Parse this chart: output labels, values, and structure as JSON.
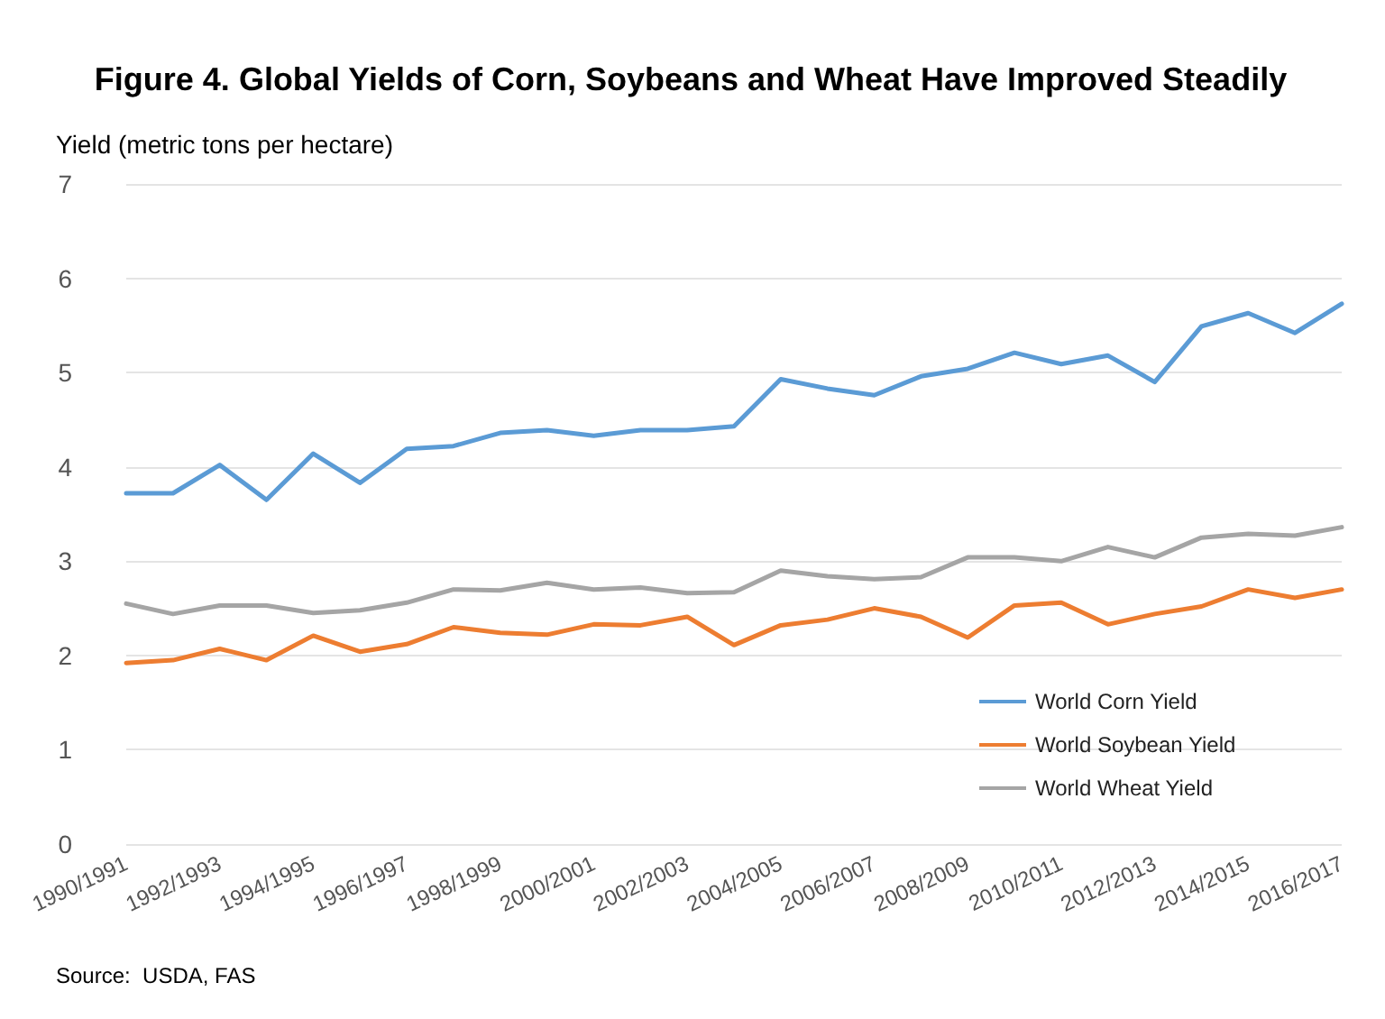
{
  "chart_data": {
    "type": "line",
    "title": "Figure 4. Global Yields of Corn, Soybeans and Wheat Have Improved Steadily",
    "ylabel": "Yield (metric tons per hectare)",
    "categories": [
      "1990/1991",
      null,
      "1992/1993",
      null,
      "1994/1995",
      null,
      "1996/1997",
      null,
      "1998/1999",
      null,
      "2000/2001",
      null,
      "2002/2003",
      null,
      "2004/2005",
      null,
      "2006/2007",
      null,
      "2008/2009",
      null,
      "2010/2011",
      null,
      "2012/2013",
      null,
      "2014/2015",
      null,
      "2016/2017"
    ],
    "series": [
      {
        "name": "World Corn Yield",
        "color": "#5b9bd5",
        "values": [
          3.72,
          3.72,
          4.02,
          3.65,
          4.14,
          3.83,
          4.19,
          4.22,
          4.36,
          4.39,
          4.33,
          4.39,
          4.39,
          4.43,
          4.93,
          4.83,
          4.76,
          4.96,
          5.04,
          5.21,
          5.09,
          5.18,
          4.9,
          5.49,
          5.63,
          5.42,
          5.73
        ]
      },
      {
        "name": "World Soybean Yield",
        "color": "#ed7d31",
        "values": [
          1.92,
          1.95,
          2.07,
          1.95,
          2.21,
          2.04,
          2.12,
          2.3,
          2.24,
          2.22,
          2.33,
          2.32,
          2.41,
          2.11,
          2.32,
          2.38,
          2.5,
          2.41,
          2.19,
          2.53,
          2.56,
          2.33,
          2.44,
          2.52,
          2.7,
          2.61,
          2.7
        ]
      },
      {
        "name": "World Wheat Yield",
        "color": "#a5a5a5",
        "values": [
          2.55,
          2.44,
          2.53,
          2.53,
          2.45,
          2.48,
          2.56,
          2.7,
          2.69,
          2.77,
          2.7,
          2.72,
          2.66,
          2.67,
          2.9,
          2.84,
          2.81,
          2.83,
          3.04,
          3.04,
          3.0,
          3.15,
          3.04,
          3.25,
          3.29,
          3.27,
          3.36
        ]
      }
    ],
    "ylim": [
      0,
      7
    ],
    "yticks": [
      0,
      1,
      2,
      3,
      4,
      5,
      6,
      7
    ],
    "grid": "y",
    "legend": "right",
    "marker": "none",
    "line_style": "solid",
    "annotations": [
      "Source:  USDA, FAS"
    ]
  }
}
